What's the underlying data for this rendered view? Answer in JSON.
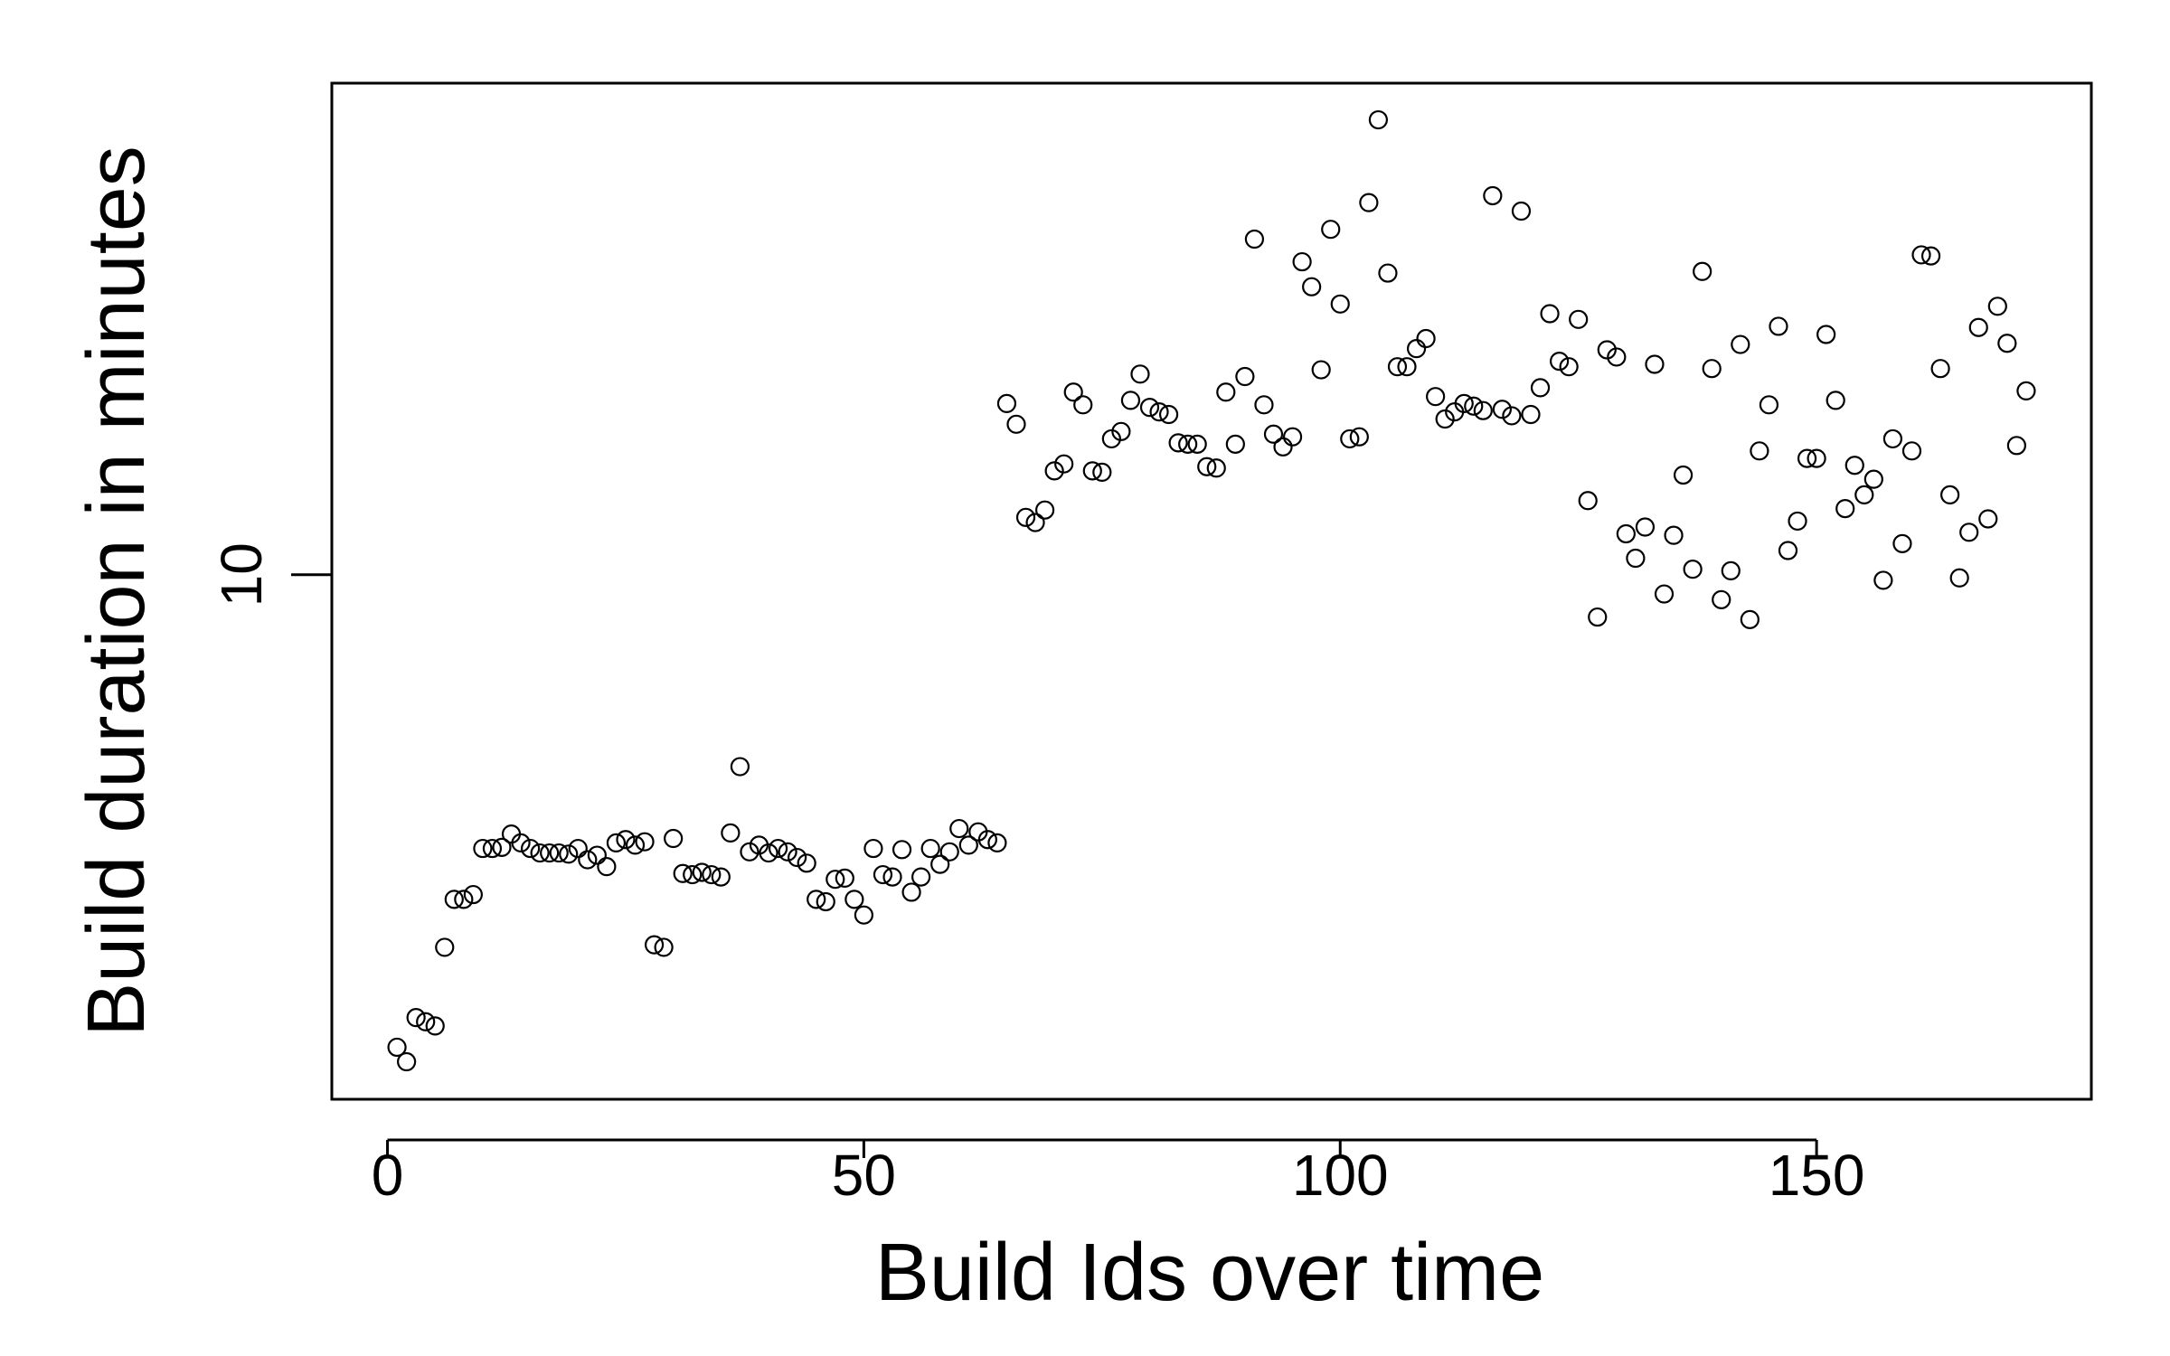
{
  "chart_data": {
    "type": "scatter",
    "x_label": "Build Ids over time",
    "y_label": "Build duration in minutes",
    "x": [
      1,
      2,
      3,
      4,
      5,
      6,
      7,
      8,
      9,
      10,
      11,
      12,
      13,
      14,
      15,
      16,
      17,
      18,
      19,
      20,
      21,
      22,
      23,
      24,
      25,
      26,
      27,
      28,
      29,
      30,
      31,
      32,
      33,
      34,
      35,
      36,
      37,
      38,
      39,
      40,
      41,
      42,
      43,
      44,
      45,
      46,
      47,
      48,
      49,
      50,
      51,
      52,
      53,
      54,
      55,
      56,
      57,
      58,
      59,
      60,
      61,
      62,
      63,
      64,
      65,
      66,
      67,
      68,
      69,
      70,
      71,
      72,
      73,
      74,
      75,
      76,
      77,
      78,
      79,
      80,
      81,
      82,
      83,
      84,
      85,
      86,
      87,
      88,
      89,
      90,
      91,
      92,
      93,
      94,
      95,
      96,
      97,
      98,
      99,
      100,
      101,
      102,
      103,
      104,
      105,
      106,
      107,
      108,
      109,
      110,
      111,
      112,
      113,
      114,
      115,
      116,
      117,
      118,
      119,
      120,
      121,
      122,
      123,
      124,
      125,
      126,
      127,
      128,
      129,
      130,
      131,
      132,
      133,
      134,
      135,
      136,
      137,
      138,
      139,
      140,
      141,
      142,
      143,
      144,
      145,
      146,
      147,
      148,
      149,
      150,
      151,
      152,
      153,
      154,
      155,
      156,
      157,
      158,
      159,
      160,
      161,
      162,
      163,
      164,
      165,
      166,
      167,
      168,
      169,
      170,
      171,
      172
    ],
    "values": [
      5.51,
      5.41,
      5.72,
      5.69,
      5.66,
      6.25,
      6.64,
      6.64,
      6.68,
      7.08,
      7.08,
      7.09,
      7.21,
      7.13,
      7.08,
      7.04,
      7.04,
      7.04,
      7.03,
      7.08,
      6.98,
      7.02,
      6.92,
      7.13,
      7.16,
      7.11,
      7.14,
      6.27,
      6.25,
      7.17,
      6.86,
      6.85,
      6.87,
      6.85,
      6.83,
      7.22,
      7.85,
      7.05,
      7.11,
      7.04,
      7.08,
      7.05,
      7.0,
      6.95,
      6.64,
      6.62,
      6.81,
      6.82,
      6.64,
      6.51,
      7.08,
      6.85,
      6.83,
      7.07,
      6.7,
      6.83,
      7.08,
      6.94,
      7.05,
      7.26,
      7.11,
      7.23,
      7.16,
      7.13,
      12.41,
      12.09,
      10.75,
      10.68,
      10.85,
      11.4,
      11.5,
      12.59,
      12.39,
      11.4,
      11.38,
      11.87,
      11.98,
      12.46,
      12.88,
      12.35,
      12.28,
      12.24,
      11.81,
      11.79,
      11.79,
      11.46,
      11.44,
      12.59,
      11.79,
      12.84,
      15.27,
      12.39,
      11.94,
      11.75,
      11.9,
      14.84,
      14.38,
      12.95,
      15.46,
      14.07,
      11.87,
      11.9,
      15.99,
      17.75,
      14.63,
      13.0,
      13.0,
      13.3,
      13.47,
      12.52,
      12.17,
      12.28,
      12.41,
      12.37,
      12.3,
      16.13,
      12.32,
      12.22,
      15.82,
      12.24,
      12.66,
      13.9,
      13.09,
      13.0,
      13.8,
      10.98,
      9.48,
      13.28,
      13.16,
      10.53,
      10.21,
      10.62,
      13.04,
      9.76,
      10.51,
      11.34,
      10.07,
      14.66,
      12.97,
      9.69,
      10.05,
      13.37,
      9.45,
      11.69,
      12.39,
      13.68,
      10.31,
      10.7,
      11.58,
      11.58,
      13.54,
      12.46,
      10.87,
      11.48,
      11.06,
      11.28,
      9.93,
      11.87,
      10.4,
      11.69,
      14.97,
      14.95,
      12.97,
      11.06,
      9.96,
      10.55,
      13.66,
      10.73,
      14.03,
      13.39,
      11.77,
      12.61
    ],
    "color": "#000000",
    "xlim": [
      -5.84,
      178.84
    ],
    "xticks": [
      0,
      50,
      100,
      150
    ],
    "ylim": [
      5.16,
      18.59
    ],
    "yticks": [
      10
    ],
    "log_y": true
  }
}
